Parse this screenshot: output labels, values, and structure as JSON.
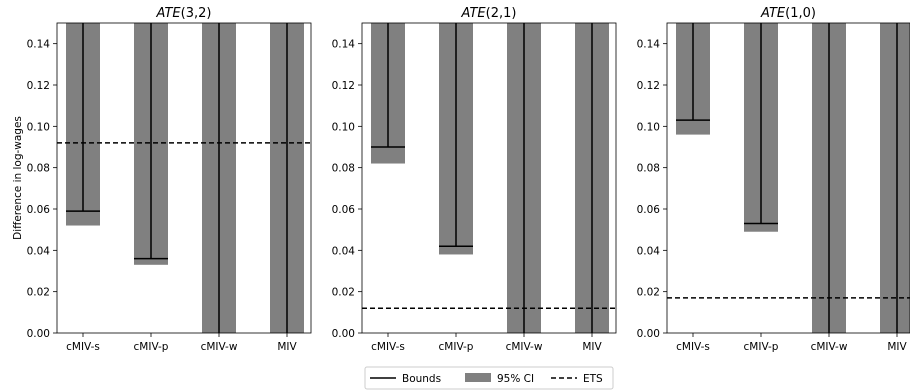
{
  "figure": {
    "ylabel": "Difference in log-wages",
    "legend": {
      "placement": "bottom-center",
      "items": [
        {
          "label": "Bounds",
          "style": "solid-line"
        },
        {
          "label": "95% CI",
          "style": "gray-patch"
        },
        {
          "label": "ETS",
          "style": "dashed-line"
        }
      ]
    },
    "colors": {
      "ci_bar": "#808080",
      "bounds": "#000000",
      "ets": "#000000"
    }
  },
  "chart_data": [
    {
      "type": "bar",
      "title_base": "ATE",
      "title_args": "(3,2)",
      "categories": [
        "cMIV-s",
        "cMIV-p",
        "cMIV-w",
        "MIV"
      ],
      "ylim": [
        0,
        0.15
      ],
      "yticks": [
        "0.00",
        "0.02",
        "0.04",
        "0.06",
        "0.08",
        "0.10",
        "0.12",
        "0.14"
      ],
      "grid": false,
      "ets": 0.092,
      "series": [
        {
          "name": "Bounds",
          "lower": [
            0.059,
            0.036,
            -0.02,
            -0.02
          ],
          "upper": [
            0.3,
            0.3,
            0.3,
            0.3
          ]
        },
        {
          "name": "95% CI",
          "lower": [
            0.052,
            0.033,
            -0.02,
            -0.02
          ],
          "upper": [
            0.3,
            0.3,
            0.3,
            0.3
          ]
        }
      ]
    },
    {
      "type": "bar",
      "title_base": "ATE",
      "title_args": "(2,1)",
      "categories": [
        "cMIV-s",
        "cMIV-p",
        "cMIV-w",
        "MIV"
      ],
      "ylim": [
        0,
        0.15
      ],
      "yticks": [
        "0.00",
        "0.02",
        "0.04",
        "0.06",
        "0.08",
        "0.10",
        "0.12",
        "0.14"
      ],
      "grid": false,
      "ets": 0.012,
      "series": [
        {
          "name": "Bounds",
          "lower": [
            0.09,
            0.042,
            -0.02,
            -0.02
          ],
          "upper": [
            0.3,
            0.3,
            0.3,
            0.3
          ]
        },
        {
          "name": "95% CI",
          "lower": [
            0.082,
            0.038,
            -0.02,
            -0.02
          ],
          "upper": [
            0.3,
            0.3,
            0.3,
            0.3
          ]
        }
      ]
    },
    {
      "type": "bar",
      "title_base": "ATE",
      "title_args": "(1,0)",
      "categories": [
        "cMIV-s",
        "cMIV-p",
        "cMIV-w",
        "MIV"
      ],
      "ylim": [
        0,
        0.15
      ],
      "yticks": [
        "0.00",
        "0.02",
        "0.04",
        "0.06",
        "0.08",
        "0.10",
        "0.12",
        "0.14"
      ],
      "grid": false,
      "ets": 0.017,
      "series": [
        {
          "name": "Bounds",
          "lower": [
            0.103,
            0.053,
            -0.02,
            -0.02
          ],
          "upper": [
            0.3,
            0.3,
            0.3,
            0.3
          ]
        },
        {
          "name": "95% CI",
          "lower": [
            0.096,
            0.049,
            -0.02,
            -0.02
          ],
          "upper": [
            0.3,
            0.3,
            0.3,
            0.3
          ]
        }
      ]
    }
  ]
}
